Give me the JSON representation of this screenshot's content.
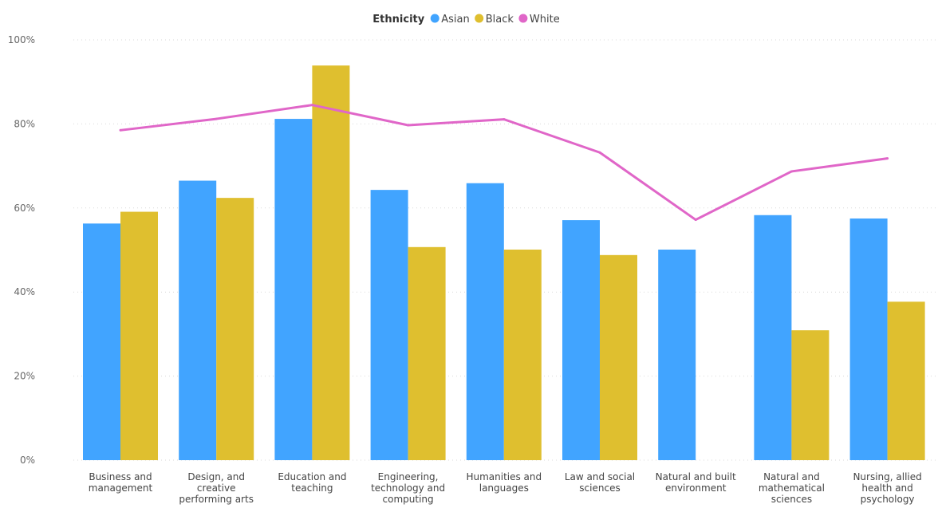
{
  "chart_data": {
    "type": "bar",
    "legend": {
      "title": "Ethnicity",
      "position": "top-center"
    },
    "y_ticks": [
      "0%",
      "20%",
      "40%",
      "60%",
      "80%",
      "100%"
    ],
    "ylim": [
      0,
      100
    ],
    "grid": true,
    "categories": [
      [
        "Business and",
        "management"
      ],
      [
        "Design, and",
        "creative",
        "performing arts"
      ],
      [
        "Education and",
        "teaching"
      ],
      [
        "Engineering,",
        "technology and",
        "computing"
      ],
      [
        "Humanities and",
        "languages"
      ],
      [
        "Law and social",
        "sciences"
      ],
      [
        "Natural and built",
        "environment"
      ],
      [
        "Natural and",
        "mathematical",
        "sciences"
      ],
      [
        "Nursing, allied",
        "health and",
        "psychology"
      ]
    ],
    "series": [
      {
        "name": "Asian",
        "type": "bar",
        "color": "#41a4ff",
        "values": [
          56.3,
          66.5,
          81.2,
          64.3,
          65.9,
          57.1,
          50.1,
          58.3,
          57.5
        ]
      },
      {
        "name": "Black",
        "type": "bar",
        "color": "#dfbf2f",
        "values": [
          59.1,
          62.4,
          93.9,
          50.7,
          50.1,
          48.8,
          null,
          30.9,
          37.7
        ]
      },
      {
        "name": "White",
        "type": "line",
        "color": "#e066c8",
        "values": [
          78.5,
          81.2,
          84.5,
          79.7,
          81.1,
          73.2,
          57.2,
          68.7,
          71.8
        ]
      }
    ]
  }
}
